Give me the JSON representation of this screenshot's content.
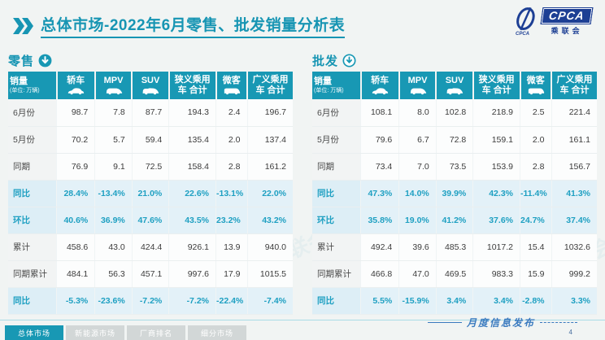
{
  "title": "总体市场-2022年6月零售、批发销量分析表",
  "logo": {
    "acronym": "CPCA",
    "name_cn": "乘联会",
    "swoosh_sub": "CPCA"
  },
  "colors": {
    "accent_teal": "#1898b4",
    "emphasis_row_bg": "#e3f1f8",
    "emphasis_text": "#1fa0c2",
    "logo_blue": "#1d3f94",
    "page_bg": "#f1f4f3"
  },
  "watermark_text": "CPCA 乘联会",
  "chart_data": [
    {
      "type": "table",
      "title": "零售",
      "arrow_icon": "circle-down-arrow-solid-icon",
      "unit_note": "(单位: 万辆)",
      "columns": [
        {
          "label": "销量",
          "sublabel": "(单位: 万辆)"
        },
        {
          "label": "轿车",
          "icon": "sedan-icon"
        },
        {
          "label": "MPV",
          "icon": "mpv-icon"
        },
        {
          "label": "SUV",
          "icon": "suv-icon"
        },
        {
          "label": "狭义乘用车 合计"
        },
        {
          "label": "微客",
          "icon": "minibus-icon"
        },
        {
          "label": "广义乘用车 合计"
        }
      ],
      "rows": [
        {
          "label": "6月份",
          "emphasis": false,
          "values": [
            "98.7",
            "7.8",
            "87.7",
            "194.3",
            "2.4",
            "196.7"
          ]
        },
        {
          "label": "5月份",
          "emphasis": false,
          "values": [
            "70.2",
            "5.7",
            "59.4",
            "135.4",
            "2.0",
            "137.4"
          ]
        },
        {
          "label": "同期",
          "emphasis": false,
          "values": [
            "76.9",
            "9.1",
            "72.5",
            "158.4",
            "2.8",
            "161.2"
          ]
        },
        {
          "label": "同比",
          "emphasis": true,
          "values": [
            "28.4%",
            "-13.4%",
            "21.0%",
            "22.6%",
            "-13.1%",
            "22.0%"
          ]
        },
        {
          "label": "环比",
          "emphasis": true,
          "values": [
            "40.6%",
            "36.9%",
            "47.6%",
            "43.5%",
            "23.2%",
            "43.2%"
          ]
        },
        {
          "label": "累计",
          "emphasis": false,
          "values": [
            "458.6",
            "43.0",
            "424.4",
            "926.1",
            "13.9",
            "940.0"
          ]
        },
        {
          "label": "同期累计",
          "emphasis": false,
          "values": [
            "484.1",
            "56.3",
            "457.1",
            "997.6",
            "17.9",
            "1015.5"
          ]
        },
        {
          "label": "同比",
          "emphasis": true,
          "values": [
            "-5.3%",
            "-23.6%",
            "-7.2%",
            "-7.2%",
            "-22.4%",
            "-7.4%"
          ]
        }
      ]
    },
    {
      "type": "table",
      "title": "批发",
      "arrow_icon": "circle-down-arrow-outline-icon",
      "unit_note": "(单位: 万辆)",
      "columns": [
        {
          "label": "销量",
          "sublabel": "(单位: 万辆)"
        },
        {
          "label": "轿车",
          "icon": "sedan-icon"
        },
        {
          "label": "MPV",
          "icon": "mpv-icon"
        },
        {
          "label": "SUV",
          "icon": "suv-icon"
        },
        {
          "label": "狭义乘用车 合计"
        },
        {
          "label": "微客",
          "icon": "minibus-icon"
        },
        {
          "label": "广义乘用车 合计"
        }
      ],
      "rows": [
        {
          "label": "6月份",
          "emphasis": false,
          "values": [
            "108.1",
            "8.0",
            "102.8",
            "218.9",
            "2.5",
            "221.4"
          ]
        },
        {
          "label": "5月份",
          "emphasis": false,
          "values": [
            "79.6",
            "6.7",
            "72.8",
            "159.1",
            "2.0",
            "161.1"
          ]
        },
        {
          "label": "同期",
          "emphasis": false,
          "values": [
            "73.4",
            "7.0",
            "73.5",
            "153.9",
            "2.8",
            "156.7"
          ]
        },
        {
          "label": "同比",
          "emphasis": true,
          "values": [
            "47.3%",
            "14.0%",
            "39.9%",
            "42.3%",
            "-11.4%",
            "41.3%"
          ]
        },
        {
          "label": "环比",
          "emphasis": true,
          "values": [
            "35.8%",
            "19.0%",
            "41.2%",
            "37.6%",
            "24.7%",
            "37.4%"
          ]
        },
        {
          "label": "累计",
          "emphasis": false,
          "values": [
            "492.4",
            "39.6",
            "485.3",
            "1017.2",
            "15.4",
            "1032.6"
          ]
        },
        {
          "label": "同期累计",
          "emphasis": false,
          "values": [
            "466.8",
            "47.0",
            "469.5",
            "983.3",
            "15.9",
            "999.2"
          ]
        },
        {
          "label": "同比",
          "emphasis": true,
          "values": [
            "5.5%",
            "-15.9%",
            "3.4%",
            "3.4%",
            "-2.8%",
            "3.3%"
          ]
        }
      ]
    }
  ],
  "footer": {
    "tabs": [
      {
        "label": "总体市场",
        "active": true
      },
      {
        "label": "新能源市场",
        "active": false
      },
      {
        "label": "厂商排名",
        "active": false
      },
      {
        "label": "细分市场",
        "active": false
      }
    ],
    "publish_label": "月度信息发布",
    "page_number": "4"
  }
}
